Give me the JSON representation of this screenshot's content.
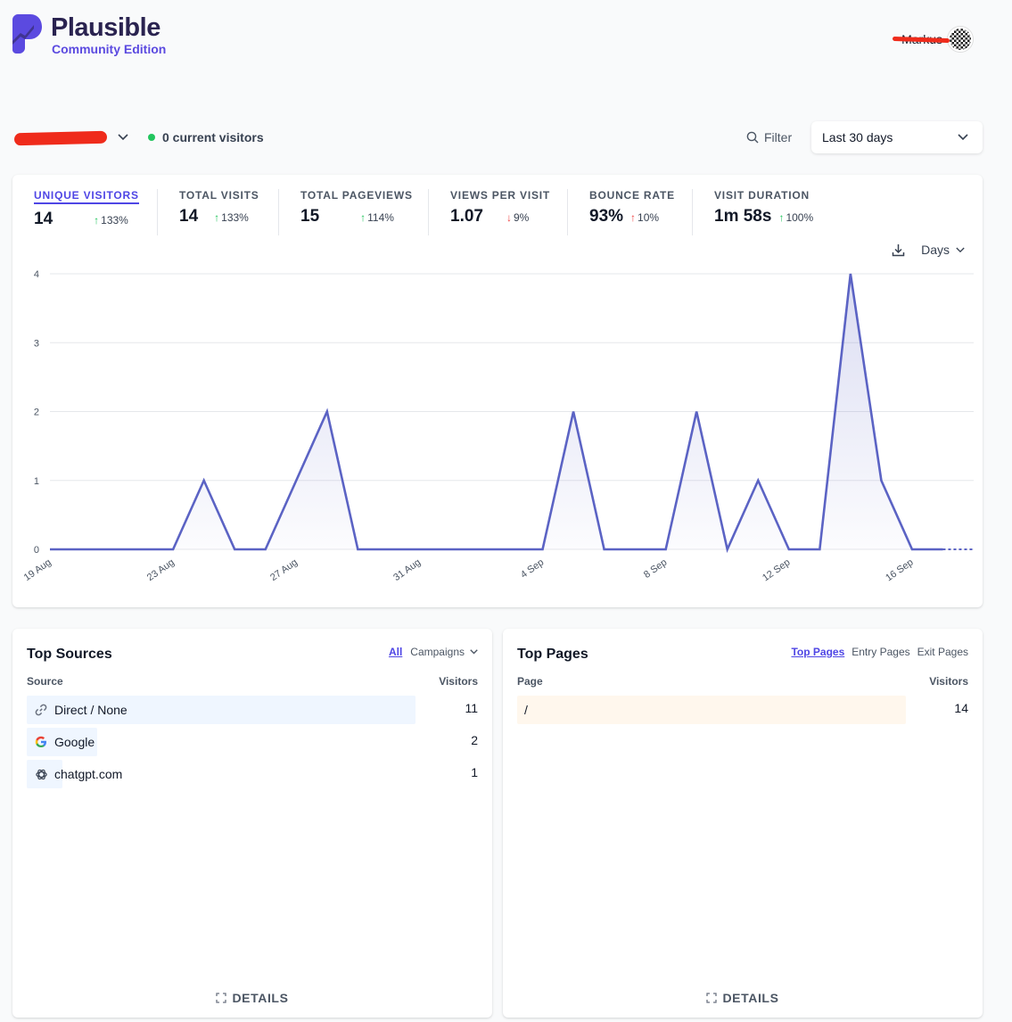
{
  "header": {
    "brand": "Plausible",
    "edition": "Community Edition",
    "user_name": "Markus"
  },
  "toolbar": {
    "current_visitors": "0 current visitors",
    "filter_label": "Filter",
    "period_label": "Last 30 days"
  },
  "stats": [
    {
      "label": "Unique visitors",
      "value": "14",
      "change": "133%",
      "direction": "up",
      "active": true
    },
    {
      "label": "Total visits",
      "value": "14",
      "change": "133%",
      "direction": "up",
      "active": false
    },
    {
      "label": "Total pageviews",
      "value": "15",
      "change": "114%",
      "direction": "up",
      "active": false
    },
    {
      "label": "Views per visit",
      "value": "1.07",
      "change": "9%",
      "direction": "down",
      "active": false
    },
    {
      "label": "Bounce rate",
      "value": "93%",
      "change": "10%",
      "direction": "up-red",
      "active": false
    },
    {
      "label": "Visit duration",
      "value": "1m 58s",
      "change": "100%",
      "direction": "up",
      "active": false
    }
  ],
  "chart_controls": {
    "interval": "Days"
  },
  "chart_data": {
    "type": "area",
    "title": "",
    "x": [
      "19 Aug",
      "20 Aug",
      "21 Aug",
      "22 Aug",
      "23 Aug",
      "24 Aug",
      "25 Aug",
      "26 Aug",
      "27 Aug",
      "28 Aug",
      "29 Aug",
      "30 Aug",
      "31 Aug",
      "1 Sep",
      "2 Sep",
      "3 Sep",
      "4 Sep",
      "5 Sep",
      "6 Sep",
      "7 Sep",
      "8 Sep",
      "9 Sep",
      "10 Sep",
      "11 Sep",
      "12 Sep",
      "13 Sep",
      "14 Sep",
      "15 Sep",
      "16 Sep",
      "17 Sep",
      "18 Sep"
    ],
    "series": [
      {
        "name": "Unique visitors",
        "values": [
          0,
          0,
          0,
          0,
          0,
          1,
          0,
          0,
          1,
          2,
          0,
          0,
          0,
          0,
          0,
          0,
          0,
          2,
          0,
          0,
          0,
          2,
          0,
          1,
          0,
          0,
          4,
          1,
          0,
          0,
          0
        ]
      }
    ],
    "x_tick_labels": [
      "19 Aug",
      "23 Aug",
      "27 Aug",
      "31 Aug",
      "4 Sep",
      "8 Sep",
      "12 Sep",
      "16 Sep"
    ],
    "y_ticks": [
      "0",
      "1",
      "2",
      "3",
      "4"
    ],
    "ylim": [
      0,
      4
    ],
    "xlabel": "",
    "ylabel": "",
    "grid": true,
    "color": "#5b63c4"
  },
  "top_sources": {
    "title": "Top Sources",
    "tabs": [
      "All",
      "Campaigns"
    ],
    "col_left": "Source",
    "col_right": "Visitors",
    "rows": [
      {
        "label": "Direct / None",
        "value": "11",
        "icon": "link-icon"
      },
      {
        "label": "Google",
        "value": "2",
        "icon": "google-icon"
      },
      {
        "label": "chatgpt.com",
        "value": "1",
        "icon": "openai-icon"
      }
    ],
    "details": "DETAILS",
    "bar_color": "#eff6ff"
  },
  "top_pages": {
    "title": "Top Pages",
    "tabs": [
      "Top Pages",
      "Entry Pages",
      "Exit Pages"
    ],
    "col_left": "Page",
    "col_right": "Visitors",
    "rows": [
      {
        "label": "/",
        "value": "14"
      }
    ],
    "details": "DETAILS",
    "bar_color": "#fff7ed"
  }
}
